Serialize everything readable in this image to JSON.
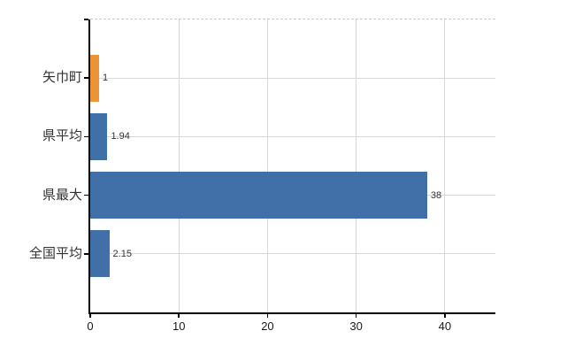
{
  "chart_data": {
    "type": "bar",
    "orientation": "horizontal",
    "title": "",
    "xlabel": "",
    "ylabel": "",
    "categories": [
      "矢巾町",
      "県平均",
      "県最大",
      "全国平均"
    ],
    "values": [
      1,
      1.94,
      38,
      2.15
    ],
    "value_labels": [
      "1",
      "1.94",
      "38",
      "2.15"
    ],
    "bar_colors": [
      "#ec9338",
      "#4170a8",
      "#4170a8",
      "#4170a8"
    ],
    "x_ticks": [
      0,
      10,
      20,
      30,
      40
    ],
    "x_tick_labels": [
      "0",
      "10",
      "20",
      "30",
      "40"
    ],
    "xlim": [
      0,
      45.7
    ],
    "grid": true,
    "legend": false,
    "gridline_color": "#d9d9d9",
    "top_border_color": "#c9c9c9",
    "axis_color": "#000000",
    "label_color": "#333333",
    "background_color": "#ffffff"
  }
}
